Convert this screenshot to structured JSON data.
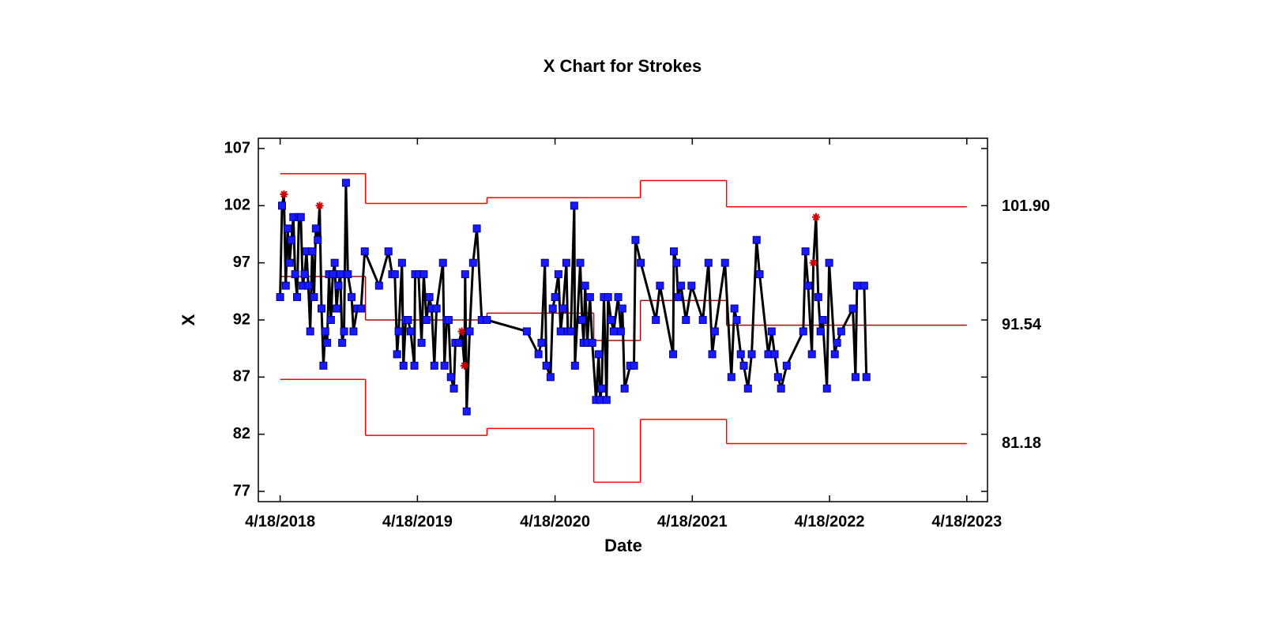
{
  "chart_data": {
    "type": "control",
    "title": "X Chart for Strokes",
    "x_label": "Date",
    "y_label": "X",
    "xlim": [
      "2018-02-19",
      "2023-06-12"
    ],
    "xticks": [
      {
        "value": "2018-04-18",
        "label": "4/18/2018"
      },
      {
        "value": "2019-04-18",
        "label": "4/18/2019"
      },
      {
        "value": "2020-04-18",
        "label": "4/18/2020"
      },
      {
        "value": "2021-04-18",
        "label": "4/18/2021"
      },
      {
        "value": "2022-04-18",
        "label": "4/18/2022"
      },
      {
        "value": "2023-04-18",
        "label": "4/18/2023"
      }
    ],
    "ylim": [
      76.1,
      107.9
    ],
    "yticks": [
      77,
      82,
      87,
      92,
      97,
      102,
      107
    ],
    "line_color": "#000000",
    "marker_color": "#1a1aff",
    "flag_color": "#cc0000",
    "x": [
      "2018-04-18",
      "2018-04-23",
      "2018-04-28",
      "2018-05-03",
      "2018-05-08",
      "2018-05-13",
      "2018-05-18",
      "2018-05-23",
      "2018-05-28",
      "2018-06-02",
      "2018-06-07",
      "2018-06-12",
      "2018-06-17",
      "2018-06-22",
      "2018-06-27",
      "2018-07-02",
      "2018-07-07",
      "2018-07-12",
      "2018-07-17",
      "2018-07-22",
      "2018-07-27",
      "2018-08-01",
      "2018-08-06",
      "2018-08-11",
      "2018-08-16",
      "2018-08-21",
      "2018-08-26",
      "2018-08-31",
      "2018-09-05",
      "2018-09-10",
      "2018-09-15",
      "2018-09-20",
      "2018-09-25",
      "2018-09-30",
      "2018-10-05",
      "2018-10-10",
      "2018-10-15",
      "2018-10-25",
      "2018-10-30",
      "2018-11-09",
      "2018-11-19",
      "2018-11-29",
      "2019-01-06",
      "2019-01-31",
      "2019-02-10",
      "2019-02-17",
      "2019-02-23",
      "2019-02-27",
      "2019-03-08",
      "2019-03-12",
      "2019-03-18",
      "2019-03-24",
      "2019-03-31",
      "2019-04-10",
      "2019-04-12",
      "2019-04-21",
      "2019-04-29",
      "2019-05-05",
      "2019-05-12",
      "2019-05-20",
      "2019-05-26",
      "2019-06-02",
      "2019-06-08",
      "2019-06-25",
      "2019-06-29",
      "2019-07-05",
      "2019-07-10",
      "2019-07-16",
      "2019-07-24",
      "2019-07-28",
      "2019-08-06",
      "2019-08-14",
      "2019-08-21",
      "2019-08-23",
      "2019-08-27",
      "2019-09-04",
      "2019-09-13",
      "2019-09-23",
      "2019-10-06",
      "2019-10-20",
      "2020-02-03",
      "2020-03-05",
      "2020-03-13",
      "2020-03-22",
      "2020-03-26",
      "2020-04-06",
      "2020-04-12",
      "2020-04-18",
      "2020-04-27",
      "2020-05-03",
      "2020-05-09",
      "2020-05-18",
      "2020-05-22",
      "2020-05-30",
      "2020-06-08",
      "2020-06-10",
      "2020-06-24",
      "2020-06-29",
      "2020-07-03",
      "2020-07-07",
      "2020-07-13",
      "2020-07-20",
      "2020-07-26",
      "2020-08-05",
      "2020-08-12",
      "2020-08-16",
      "2020-08-20",
      "2020-08-26",
      "2020-09-02",
      "2020-09-06",
      "2020-09-14",
      "2020-09-21",
      "2020-10-03",
      "2020-10-10",
      "2020-10-14",
      "2020-10-20",
      "2020-11-04",
      "2020-11-14",
      "2020-11-18",
      "2020-12-02",
      "2021-01-11",
      "2021-01-22",
      "2021-02-26",
      "2021-02-28",
      "2021-03-07",
      "2021-03-11",
      "2021-03-19",
      "2021-04-01",
      "2021-04-16",
      "2021-05-16",
      "2021-05-31",
      "2021-06-10",
      "2021-06-17",
      "2021-07-14",
      "2021-07-31",
      "2021-08-08",
      "2021-08-14",
      "2021-08-25",
      "2021-09-02",
      "2021-09-13",
      "2021-09-23",
      "2021-10-06",
      "2021-10-14",
      "2021-11-06",
      "2021-11-15",
      "2021-11-23",
      "2021-12-02",
      "2021-12-10",
      "2021-12-25",
      "2022-02-07",
      "2022-02-13",
      "2022-02-20",
      "2022-03-02",
      "2022-03-06",
      "2022-03-13",
      "2022-03-19",
      "2022-03-25",
      "2022-03-31",
      "2022-04-11",
      "2022-04-17",
      "2022-05-02",
      "2022-05-08",
      "2022-05-19",
      "2022-06-19",
      "2022-06-26",
      "2022-06-30",
      "2022-07-19",
      "2022-07-25"
    ],
    "values": [
      94,
      102,
      103,
      95,
      100,
      97,
      99,
      101,
      96,
      94,
      101,
      101,
      95,
      96,
      98,
      95,
      91,
      98,
      94,
      100,
      99,
      102,
      93,
      88,
      91,
      90,
      96,
      92,
      96,
      97,
      93,
      95,
      96,
      90,
      91,
      104,
      96,
      94,
      91,
      93,
      93,
      98,
      95,
      98,
      96,
      96,
      89,
      91,
      97,
      88,
      92,
      92,
      91,
      88,
      96,
      96,
      90,
      96,
      92,
      94,
      93,
      88,
      93,
      97,
      88,
      92,
      92,
      87,
      86,
      90,
      90,
      91,
      88,
      96,
      84,
      91,
      97,
      100,
      92,
      92,
      91,
      89,
      90,
      97,
      88,
      87,
      93,
      94,
      96,
      91,
      93,
      97,
      91,
      91,
      102,
      88,
      97,
      92,
      90,
      95,
      90,
      94,
      90,
      85,
      89,
      85,
      86,
      94,
      85,
      94,
      92,
      91,
      94,
      91,
      93,
      86,
      88,
      88,
      99,
      97,
      92,
      95,
      89,
      98,
      97,
      94,
      95,
      92,
      95,
      92,
      97,
      89,
      91,
      97,
      87,
      93,
      92,
      89,
      88,
      86,
      89,
      99,
      96,
      89,
      91,
      89,
      87,
      86,
      88,
      91,
      98,
      95,
      89,
      97,
      101,
      94,
      91,
      92,
      86,
      97,
      89,
      90,
      91,
      93,
      87,
      95,
      95,
      87
    ],
    "flagged": [
      2,
      21,
      71,
      72,
      153,
      154
    ],
    "limits": {
      "x": [
        "2018-04-18",
        "2018-12-01",
        "2019-10-20",
        "2020-07-30",
        "2020-12-01",
        "2021-07-18",
        "2023-04-18"
      ],
      "ucl": [
        104.8,
        102.2,
        102.7,
        102.7,
        104.2,
        101.9
      ],
      "cl": [
        95.8,
        92.0,
        92.6,
        90.2,
        93.7,
        91.54
      ],
      "lcl": [
        86.8,
        81.9,
        82.5,
        77.8,
        83.3,
        81.18
      ],
      "limit_color": "#ff0000",
      "center_color": "#a01010"
    },
    "limit_labels": [
      {
        "value": 101.9,
        "label": "101.90"
      },
      {
        "value": 91.54,
        "label": "91.54"
      },
      {
        "value": 81.18,
        "label": "81.18"
      }
    ]
  }
}
